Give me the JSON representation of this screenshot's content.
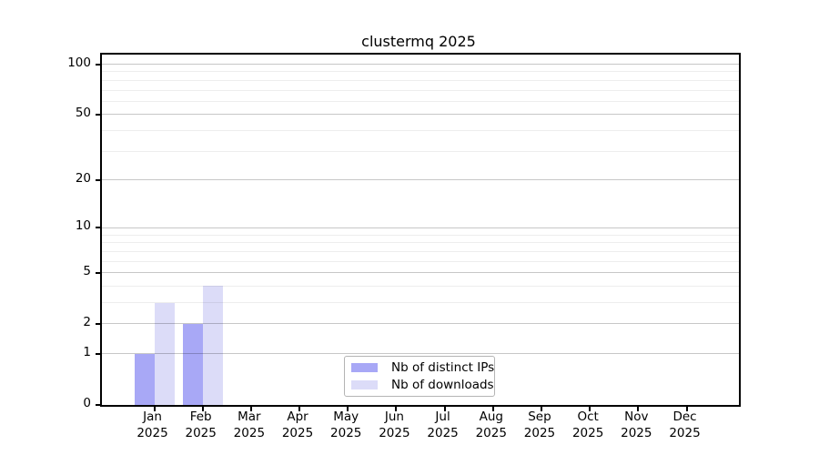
{
  "title": "clustermq 2025",
  "colors": {
    "distinct_ips": "#a8a8f6",
    "downloads": "#dcdcf8",
    "grid_major": "rgba(0,0,0,0.22)",
    "grid_minor": "rgba(0,0,0,0.07)",
    "axis": "#000000",
    "legend_border": "#b4b4b4",
    "text": "#000000"
  },
  "chart_data": {
    "type": "bar",
    "title": "clustermq 2025",
    "categories": [
      "Jan 2025",
      "Feb 2025",
      "Mar 2025",
      "Apr 2025",
      "May 2025",
      "Jun 2025",
      "Jul 2025",
      "Aug 2025",
      "Sep 2025",
      "Oct 2025",
      "Nov 2025",
      "Dec 2025"
    ],
    "series": [
      {
        "name": "Nb of distinct IPs",
        "color_key": "distinct_ips",
        "values": [
          1,
          2,
          0,
          0,
          0,
          0,
          0,
          0,
          0,
          0,
          0,
          0
        ]
      },
      {
        "name": "Nb of downloads",
        "color_key": "downloads",
        "values": [
          3,
          4,
          0,
          0,
          0,
          0,
          0,
          0,
          0,
          0,
          0,
          0
        ]
      }
    ],
    "xlabel": "",
    "ylabel": "",
    "y_axis": {
      "scale": "log1p",
      "tick_labels": [
        0,
        1,
        2,
        5,
        10,
        20,
        50,
        100
      ],
      "minor_gridlines": [
        3,
        4,
        6,
        7,
        8,
        9,
        30,
        40,
        60,
        70,
        80,
        90
      ],
      "ylim": [
        0,
        114
      ]
    },
    "grid": "horizontal-major-and-minor",
    "legend_position": "inside-bottom-center"
  }
}
